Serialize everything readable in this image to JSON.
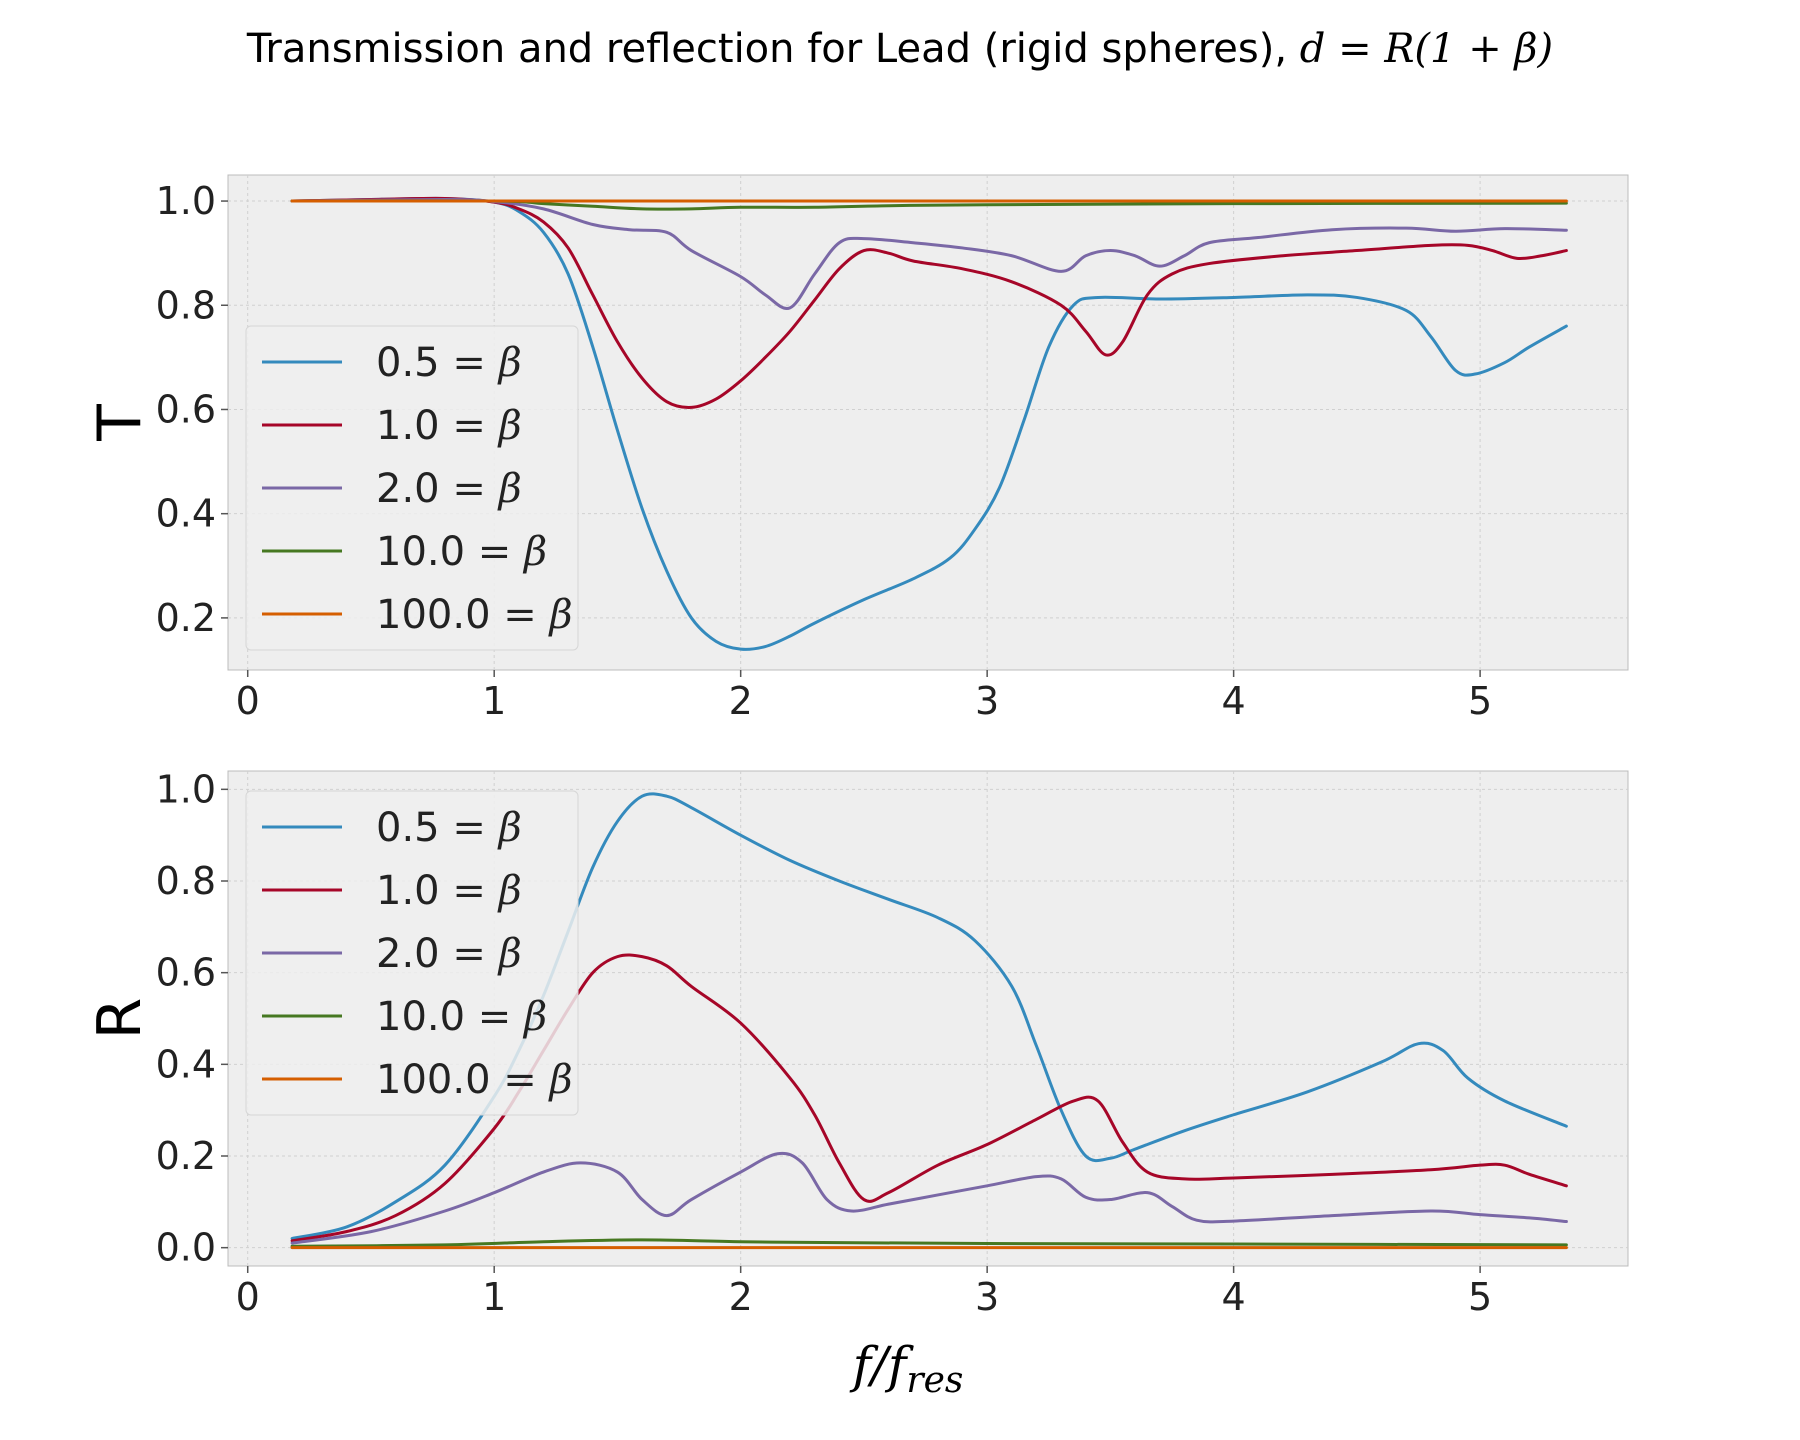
{
  "figure": {
    "title_text": "Transmission and reflection for Lead (rigid spheres), ",
    "title_math": "d = R(1 + β)"
  },
  "chart_data": [
    {
      "type": "line",
      "ylabel": "T",
      "xlabel": "",
      "xlim": [
        -0.08,
        5.6
      ],
      "ylim": [
        0.1,
        1.05
      ],
      "xticks": [
        "0",
        "1",
        "2",
        "3",
        "4",
        "5"
      ],
      "yticks": [
        "0.2",
        "0.4",
        "0.6",
        "0.8",
        "1.0"
      ],
      "grid": true,
      "legend": "lower-left",
      "series": [
        {
          "name": "0.5",
          "color": "#348abd",
          "points": [
            [
              0.18,
              1.0
            ],
            [
              0.5,
              1.003
            ],
            [
              0.8,
              1.005
            ],
            [
              1.0,
              0.998
            ],
            [
              1.1,
              0.98
            ],
            [
              1.2,
              0.94
            ],
            [
              1.3,
              0.86
            ],
            [
              1.4,
              0.72
            ],
            [
              1.5,
              0.56
            ],
            [
              1.6,
              0.41
            ],
            [
              1.7,
              0.29
            ],
            [
              1.8,
              0.2
            ],
            [
              1.9,
              0.155
            ],
            [
              2.0,
              0.14
            ],
            [
              2.1,
              0.145
            ],
            [
              2.2,
              0.165
            ],
            [
              2.3,
              0.19
            ],
            [
              2.5,
              0.235
            ],
            [
              2.7,
              0.275
            ],
            [
              2.85,
              0.315
            ],
            [
              2.95,
              0.37
            ],
            [
              3.05,
              0.45
            ],
            [
              3.15,
              0.58
            ],
            [
              3.25,
              0.72
            ],
            [
              3.35,
              0.8
            ],
            [
              3.45,
              0.815
            ],
            [
              3.7,
              0.812
            ],
            [
              4.0,
              0.815
            ],
            [
              4.3,
              0.82
            ],
            [
              4.5,
              0.815
            ],
            [
              4.7,
              0.79
            ],
            [
              4.8,
              0.74
            ],
            [
              4.9,
              0.675
            ],
            [
              4.98,
              0.668
            ],
            [
              5.1,
              0.69
            ],
            [
              5.2,
              0.72
            ],
            [
              5.35,
              0.76
            ]
          ]
        },
        {
          "name": "1.0",
          "color": "#a60628",
          "points": [
            [
              0.18,
              1.0
            ],
            [
              0.5,
              1.003
            ],
            [
              0.8,
              1.005
            ],
            [
              1.0,
              0.998
            ],
            [
              1.1,
              0.985
            ],
            [
              1.2,
              0.96
            ],
            [
              1.3,
              0.91
            ],
            [
              1.4,
              0.82
            ],
            [
              1.5,
              0.73
            ],
            [
              1.6,
              0.66
            ],
            [
              1.7,
              0.615
            ],
            [
              1.8,
              0.604
            ],
            [
              1.9,
              0.62
            ],
            [
              2.0,
              0.655
            ],
            [
              2.1,
              0.7
            ],
            [
              2.2,
              0.75
            ],
            [
              2.3,
              0.81
            ],
            [
              2.4,
              0.87
            ],
            [
              2.5,
              0.905
            ],
            [
              2.6,
              0.9
            ],
            [
              2.7,
              0.885
            ],
            [
              2.9,
              0.87
            ],
            [
              3.1,
              0.845
            ],
            [
              3.3,
              0.8
            ],
            [
              3.4,
              0.75
            ],
            [
              3.48,
              0.705
            ],
            [
              3.55,
              0.73
            ],
            [
              3.65,
              0.82
            ],
            [
              3.75,
              0.86
            ],
            [
              3.9,
              0.88
            ],
            [
              4.2,
              0.895
            ],
            [
              4.5,
              0.905
            ],
            [
              4.8,
              0.915
            ],
            [
              4.95,
              0.915
            ],
            [
              5.05,
              0.905
            ],
            [
              5.15,
              0.89
            ],
            [
              5.25,
              0.895
            ],
            [
              5.35,
              0.905
            ]
          ]
        },
        {
          "name": "2.0",
          "color": "#7a68a6",
          "points": [
            [
              0.18,
              1.0
            ],
            [
              0.8,
              1.003
            ],
            [
              1.0,
              0.999
            ],
            [
              1.2,
              0.985
            ],
            [
              1.4,
              0.955
            ],
            [
              1.55,
              0.945
            ],
            [
              1.7,
              0.94
            ],
            [
              1.8,
              0.905
            ],
            [
              2.0,
              0.855
            ],
            [
              2.1,
              0.82
            ],
            [
              2.2,
              0.795
            ],
            [
              2.3,
              0.86
            ],
            [
              2.4,
              0.92
            ],
            [
              2.5,
              0.928
            ],
            [
              2.7,
              0.92
            ],
            [
              2.9,
              0.91
            ],
            [
              3.1,
              0.895
            ],
            [
              3.3,
              0.865
            ],
            [
              3.4,
              0.895
            ],
            [
              3.5,
              0.905
            ],
            [
              3.6,
              0.895
            ],
            [
              3.7,
              0.875
            ],
            [
              3.8,
              0.895
            ],
            [
              3.9,
              0.92
            ],
            [
              4.1,
              0.93
            ],
            [
              4.4,
              0.945
            ],
            [
              4.7,
              0.948
            ],
            [
              4.9,
              0.942
            ],
            [
              5.1,
              0.947
            ],
            [
              5.35,
              0.944
            ]
          ]
        },
        {
          "name": "10.0",
          "color": "#467821",
          "points": [
            [
              0.18,
              1.0
            ],
            [
              1.0,
              1.0
            ],
            [
              1.2,
              0.995
            ],
            [
              1.4,
              0.99
            ],
            [
              1.6,
              0.985
            ],
            [
              1.8,
              0.985
            ],
            [
              2.0,
              0.988
            ],
            [
              2.3,
              0.988
            ],
            [
              2.6,
              0.991
            ],
            [
              3.0,
              0.993
            ],
            [
              4.0,
              0.995
            ],
            [
              5.35,
              0.996
            ]
          ]
        },
        {
          "name": "100.0",
          "color": "#d55e00",
          "points": [
            [
              0.18,
              1.0
            ],
            [
              1.0,
              1.0
            ],
            [
              2.0,
              1.0
            ],
            [
              3.0,
              1.0
            ],
            [
              4.0,
              1.0
            ],
            [
              5.35,
              1.0
            ]
          ]
        }
      ]
    },
    {
      "type": "line",
      "ylabel": "R",
      "xlabel": "f/f",
      "xlabel_sub": "res",
      "xlim": [
        -0.08,
        5.6
      ],
      "ylim": [
        -0.04,
        1.04
      ],
      "xticks": [
        "0",
        "1",
        "2",
        "3",
        "4",
        "5"
      ],
      "yticks": [
        "0.0",
        "0.2",
        "0.4",
        "0.6",
        "0.8",
        "1.0"
      ],
      "grid": true,
      "legend": "upper-left",
      "series": [
        {
          "name": "0.5",
          "color": "#348abd",
          "points": [
            [
              0.18,
              0.02
            ],
            [
              0.4,
              0.045
            ],
            [
              0.6,
              0.1
            ],
            [
              0.8,
              0.18
            ],
            [
              1.0,
              0.33
            ],
            [
              1.1,
              0.43
            ],
            [
              1.2,
              0.55
            ],
            [
              1.3,
              0.69
            ],
            [
              1.4,
              0.83
            ],
            [
              1.5,
              0.93
            ],
            [
              1.6,
              0.985
            ],
            [
              1.7,
              0.985
            ],
            [
              1.8,
              0.96
            ],
            [
              2.0,
              0.9
            ],
            [
              2.2,
              0.845
            ],
            [
              2.4,
              0.8
            ],
            [
              2.6,
              0.76
            ],
            [
              2.8,
              0.72
            ],
            [
              2.95,
              0.67
            ],
            [
              3.1,
              0.57
            ],
            [
              3.2,
              0.44
            ],
            [
              3.3,
              0.3
            ],
            [
              3.4,
              0.2
            ],
            [
              3.5,
              0.195
            ],
            [
              3.6,
              0.215
            ],
            [
              3.8,
              0.255
            ],
            [
              4.0,
              0.29
            ],
            [
              4.3,
              0.34
            ],
            [
              4.6,
              0.405
            ],
            [
              4.75,
              0.445
            ],
            [
              4.85,
              0.43
            ],
            [
              4.95,
              0.37
            ],
            [
              5.1,
              0.32
            ],
            [
              5.35,
              0.265
            ]
          ]
        },
        {
          "name": "1.0",
          "color": "#a60628",
          "points": [
            [
              0.18,
              0.015
            ],
            [
              0.4,
              0.035
            ],
            [
              0.6,
              0.07
            ],
            [
              0.8,
              0.14
            ],
            [
              1.0,
              0.26
            ],
            [
              1.1,
              0.34
            ],
            [
              1.2,
              0.43
            ],
            [
              1.3,
              0.52
            ],
            [
              1.4,
              0.6
            ],
            [
              1.5,
              0.635
            ],
            [
              1.6,
              0.635
            ],
            [
              1.7,
              0.615
            ],
            [
              1.8,
              0.57
            ],
            [
              2.0,
              0.49
            ],
            [
              2.2,
              0.37
            ],
            [
              2.3,
              0.29
            ],
            [
              2.4,
              0.185
            ],
            [
              2.5,
              0.105
            ],
            [
              2.6,
              0.12
            ],
            [
              2.8,
              0.18
            ],
            [
              3.0,
              0.225
            ],
            [
              3.2,
              0.28
            ],
            [
              3.35,
              0.32
            ],
            [
              3.45,
              0.32
            ],
            [
              3.55,
              0.23
            ],
            [
              3.65,
              0.165
            ],
            [
              3.8,
              0.15
            ],
            [
              4.0,
              0.152
            ],
            [
              4.4,
              0.16
            ],
            [
              4.8,
              0.17
            ],
            [
              5.0,
              0.18
            ],
            [
              5.1,
              0.18
            ],
            [
              5.2,
              0.16
            ],
            [
              5.35,
              0.135
            ]
          ]
        },
        {
          "name": "2.0",
          "color": "#7a68a6",
          "points": [
            [
              0.18,
              0.01
            ],
            [
              0.5,
              0.035
            ],
            [
              0.8,
              0.08
            ],
            [
              1.0,
              0.12
            ],
            [
              1.2,
              0.165
            ],
            [
              1.35,
              0.185
            ],
            [
              1.5,
              0.165
            ],
            [
              1.6,
              0.105
            ],
            [
              1.7,
              0.07
            ],
            [
              1.8,
              0.105
            ],
            [
              2.0,
              0.165
            ],
            [
              2.15,
              0.205
            ],
            [
              2.25,
              0.185
            ],
            [
              2.35,
              0.105
            ],
            [
              2.45,
              0.08
            ],
            [
              2.6,
              0.095
            ],
            [
              2.8,
              0.115
            ],
            [
              3.0,
              0.135
            ],
            [
              3.2,
              0.155
            ],
            [
              3.3,
              0.15
            ],
            [
              3.4,
              0.11
            ],
            [
              3.5,
              0.105
            ],
            [
              3.65,
              0.12
            ],
            [
              3.75,
              0.09
            ],
            [
              3.85,
              0.06
            ],
            [
              4.0,
              0.058
            ],
            [
              4.4,
              0.07
            ],
            [
              4.8,
              0.08
            ],
            [
              5.0,
              0.072
            ],
            [
              5.2,
              0.065
            ],
            [
              5.35,
              0.057
            ]
          ]
        },
        {
          "name": "10.0",
          "color": "#467821",
          "points": [
            [
              0.18,
              0.003
            ],
            [
              0.8,
              0.006
            ],
            [
              1.2,
              0.013
            ],
            [
              1.6,
              0.017
            ],
            [
              2.0,
              0.013
            ],
            [
              2.4,
              0.011
            ],
            [
              3.0,
              0.009
            ],
            [
              4.0,
              0.008
            ],
            [
              5.35,
              0.006
            ]
          ]
        },
        {
          "name": "100.0",
          "color": "#d55e00",
          "points": [
            [
              0.18,
              0.0
            ],
            [
              1.0,
              0.0
            ],
            [
              2.0,
              0.0
            ],
            [
              3.0,
              0.0
            ],
            [
              4.0,
              0.0
            ],
            [
              5.35,
              0.0
            ]
          ]
        }
      ]
    }
  ]
}
